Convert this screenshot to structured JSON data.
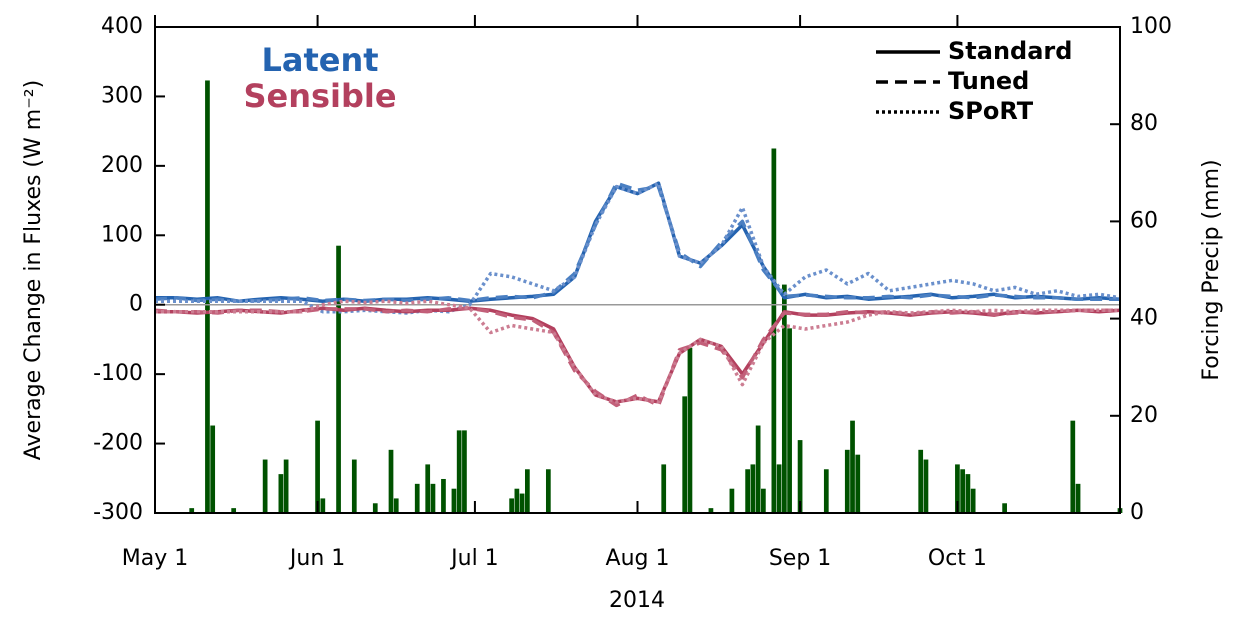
{
  "chart_data": {
    "type": "line",
    "ylabel": "Average Change in Fluxes (W m⁻²)",
    "y2label": "Forcing Precip (mm)",
    "xlabel": "2014",
    "xlim": [
      0,
      184
    ],
    "xticks": [
      {
        "value": 0,
        "label": "May 1"
      },
      {
        "value": 31,
        "label": "Jun 1"
      },
      {
        "value": 61,
        "label": "Jul 1"
      },
      {
        "value": 92,
        "label": "Aug 1"
      },
      {
        "value": 123,
        "label": "Sep 1"
      },
      {
        "value": 153,
        "label": "Oct 1"
      }
    ],
    "ylim": [
      -300,
      400
    ],
    "yticks": [
      -300,
      -200,
      -100,
      0,
      100,
      200,
      300,
      400
    ],
    "y2lim": [
      0,
      100
    ],
    "y2ticks": [
      0,
      20,
      40,
      60,
      80,
      100
    ],
    "legend_colors": [
      {
        "name": "Latent",
        "color": "#2463b0"
      },
      {
        "name": "Sensible",
        "color": "#b3405e"
      }
    ],
    "legend_styles": [
      {
        "name": "Standard",
        "dash": "solid"
      },
      {
        "name": "Tuned",
        "dash": "dashed"
      },
      {
        "name": "SPoRT",
        "dash": "dotted"
      }
    ],
    "x": [
      0,
      4,
      8,
      12,
      16,
      20,
      24,
      28,
      32,
      36,
      40,
      44,
      48,
      52,
      56,
      60,
      64,
      68,
      72,
      76,
      80,
      84,
      88,
      92,
      96,
      100,
      104,
      108,
      112,
      116,
      120,
      124,
      128,
      132,
      136,
      140,
      144,
      148,
      152,
      156,
      160,
      164,
      168,
      172,
      176,
      180,
      184
    ],
    "series": [
      {
        "color": "#2463b0",
        "dash": "solid",
        "values": [
          10,
          10,
          8,
          10,
          5,
          8,
          10,
          8,
          5,
          8,
          5,
          8,
          8,
          10,
          8,
          5,
          8,
          10,
          12,
          15,
          40,
          120,
          170,
          160,
          175,
          70,
          60,
          85,
          115,
          55,
          10,
          15,
          10,
          12,
          8,
          10,
          12,
          15,
          10,
          12,
          15,
          10,
          12,
          10,
          8,
          10,
          8
        ]
      },
      {
        "color": "#4a7fc2",
        "dash": "dashed",
        "values": [
          8,
          10,
          6,
          8,
          5,
          6,
          8,
          10,
          6,
          8,
          6,
          8,
          6,
          8,
          10,
          6,
          10,
          12,
          10,
          18,
          45,
          115,
          175,
          165,
          170,
          75,
          55,
          90,
          120,
          50,
          12,
          14,
          12,
          10,
          10,
          12,
          10,
          14,
          12,
          10,
          14,
          12,
          10,
          10,
          8,
          8,
          8
        ]
      },
      {
        "color": "#6a90cc",
        "dash": "dotted",
        "values": [
          5,
          5,
          5,
          5,
          5,
          5,
          5,
          5,
          -10,
          -10,
          -8,
          -10,
          -12,
          -8,
          -10,
          0,
          45,
          40,
          30,
          20,
          40,
          115,
          170,
          160,
          175,
          70,
          60,
          85,
          140,
          55,
          15,
          40,
          50,
          30,
          45,
          20,
          25,
          30,
          35,
          30,
          20,
          25,
          15,
          20,
          12,
          15,
          10
        ]
      },
      {
        "color": "#b3405e",
        "dash": "solid",
        "values": [
          -10,
          -10,
          -12,
          -10,
          -8,
          -10,
          -12,
          -8,
          -5,
          -8,
          -5,
          -8,
          -10,
          -8,
          -8,
          -5,
          -8,
          -15,
          -20,
          -35,
          -90,
          -130,
          -140,
          -135,
          -140,
          -70,
          -50,
          -60,
          -100,
          -55,
          -10,
          -15,
          -15,
          -12,
          -10,
          -12,
          -15,
          -12,
          -10,
          -12,
          -15,
          -10,
          -12,
          -10,
          -8,
          -10,
          -8
        ]
      },
      {
        "color": "#c25f79",
        "dash": "dashed",
        "values": [
          -8,
          -10,
          -10,
          -12,
          -8,
          -8,
          -10,
          -10,
          -6,
          -6,
          -6,
          -10,
          -8,
          -10,
          -6,
          -5,
          -10,
          -18,
          -22,
          -40,
          -95,
          -125,
          -145,
          -130,
          -145,
          -65,
          -55,
          -65,
          -105,
          -50,
          -12,
          -14,
          -14,
          -10,
          -12,
          -10,
          -14,
          -10,
          -12,
          -10,
          -14,
          -12,
          -10,
          -10,
          -8,
          -8,
          -8
        ]
      },
      {
        "color": "#cc7d92",
        "dash": "dotted",
        "values": [
          -10,
          -10,
          -10,
          -10,
          -10,
          -10,
          -10,
          -10,
          0,
          5,
          3,
          5,
          2,
          5,
          0,
          -5,
          -40,
          -30,
          -35,
          -40,
          -90,
          -130,
          -140,
          -135,
          -140,
          -70,
          -50,
          -60,
          -115,
          -55,
          -30,
          -35,
          -30,
          -25,
          -15,
          -10,
          -12,
          -10,
          -8,
          -10,
          -8,
          -10,
          -8,
          -8,
          -8,
          -8,
          -8
        ]
      }
    ],
    "bars": {
      "color": "#005200",
      "axis": "y2",
      "x": [
        7,
        10,
        11,
        15,
        21,
        24,
        25,
        31,
        32,
        35,
        38,
        42,
        45,
        46,
        50,
        52,
        53,
        55,
        57,
        58,
        59,
        68,
        69,
        70,
        71,
        75,
        97,
        101,
        102,
        106,
        110,
        113,
        114,
        115,
        116,
        118,
        119,
        120,
        121,
        123,
        128,
        132,
        133,
        134,
        146,
        147,
        153,
        154,
        155,
        156,
        162,
        175,
        176,
        184
      ],
      "values": [
        1,
        89,
        18,
        1,
        11,
        8,
        11,
        19,
        3,
        55,
        11,
        2,
        13,
        3,
        6,
        10,
        6,
        7,
        5,
        17,
        17,
        3,
        5,
        4,
        9,
        9,
        10,
        24,
        34,
        1,
        5,
        9,
        10,
        18,
        5,
        75,
        10,
        47,
        38,
        15,
        9,
        13,
        19,
        12,
        13,
        11,
        10,
        9,
        8,
        5,
        2,
        19,
        6,
        1
      ]
    }
  }
}
